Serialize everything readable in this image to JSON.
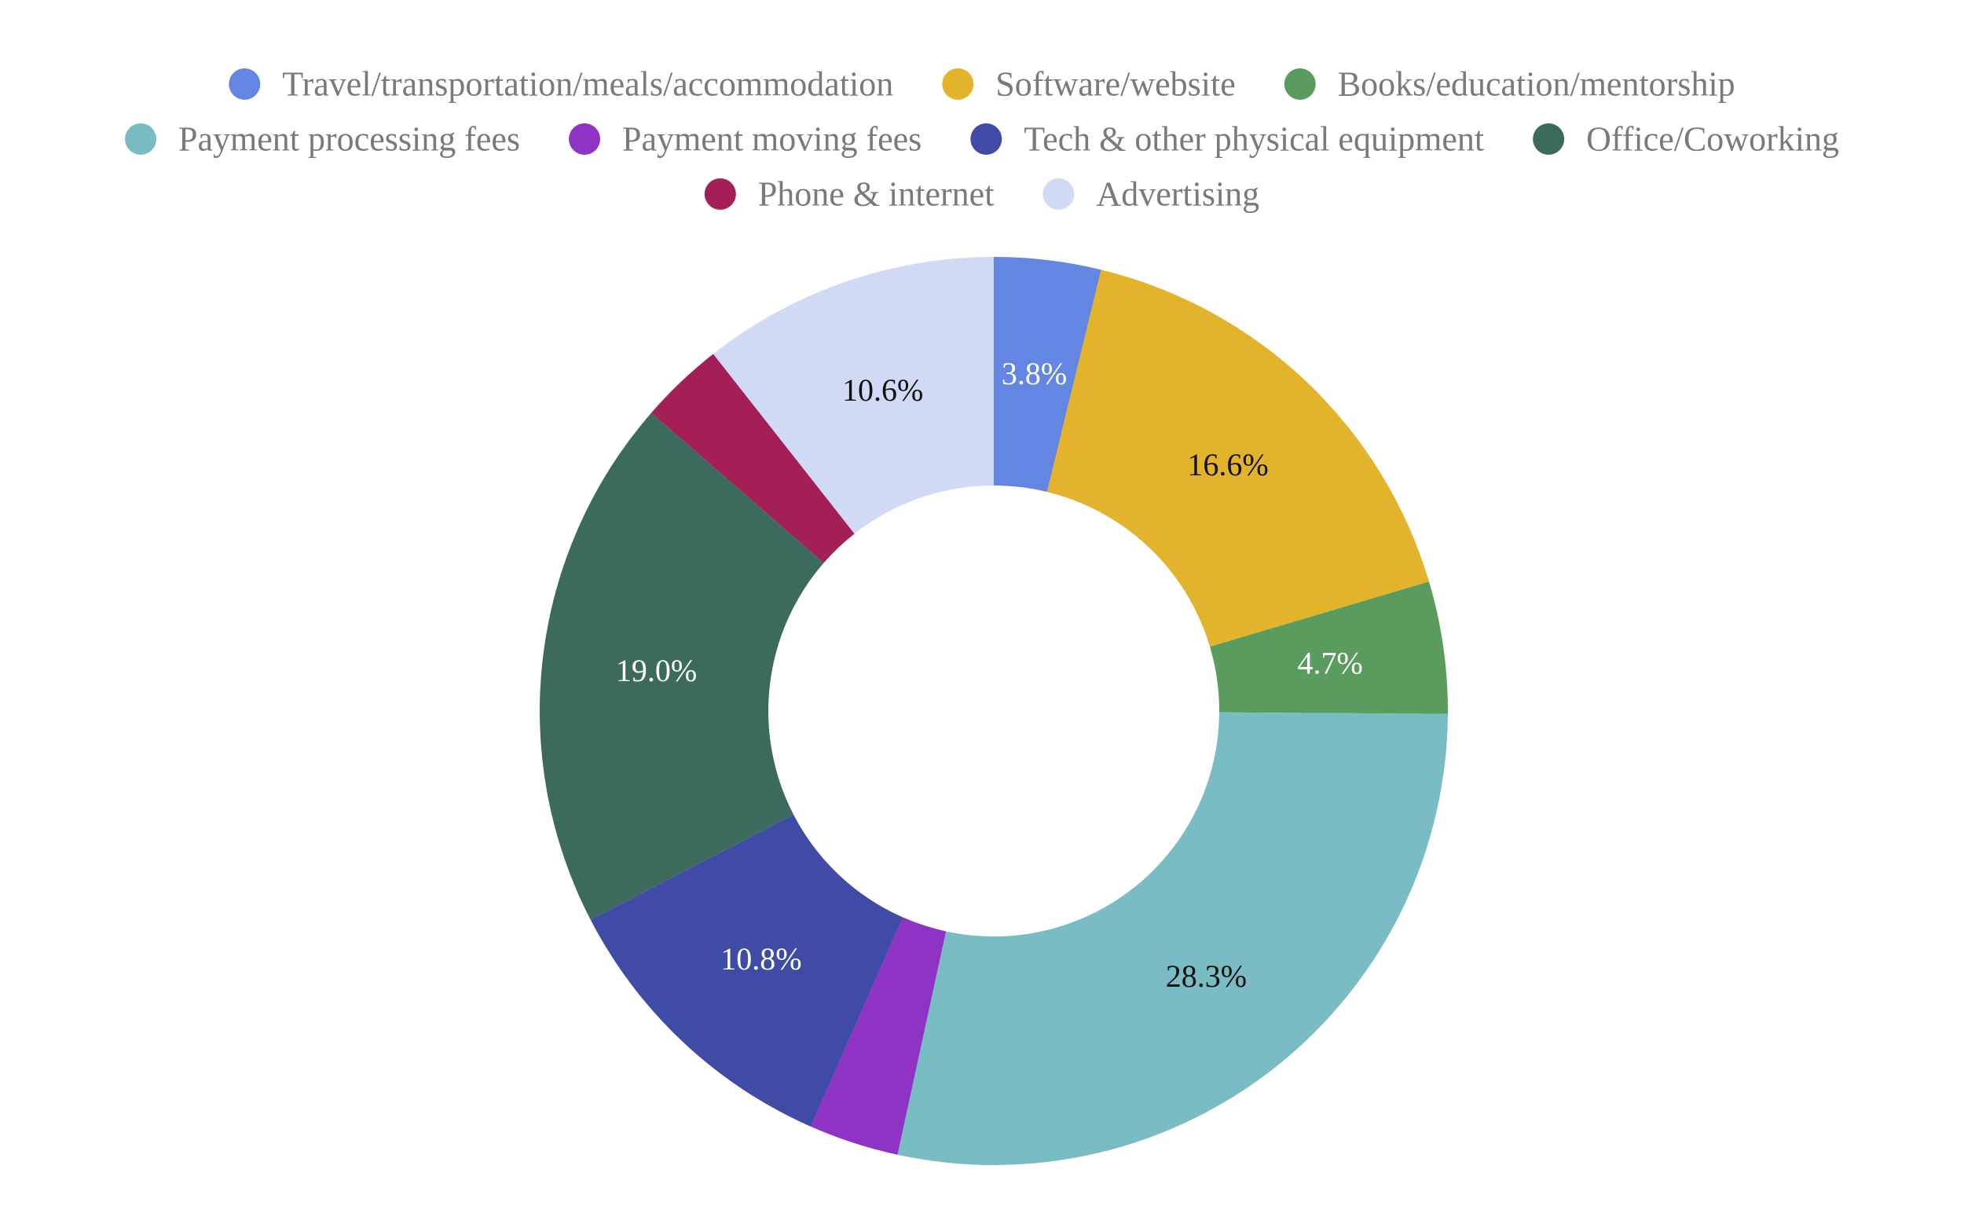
{
  "chart_data": {
    "type": "pie",
    "variant": "donut",
    "legend_position": "top",
    "categories": [
      "Travel/transportation/meals/accommodation",
      "Software/website",
      "Books/education/mentorship",
      "Payment processing fees",
      "Payment moving fees",
      "Tech & other physical equipment",
      "Office/Coworking",
      "Phone & internet",
      "Advertising"
    ],
    "values": [
      3.8,
      16.6,
      4.7,
      28.3,
      3.2,
      10.8,
      19.0,
      3.0,
      10.6
    ],
    "data_labels": [
      "3.8%",
      "16.6%",
      "4.7%",
      "28.3%",
      "",
      "10.8%",
      "19.0%",
      "",
      "10.6%"
    ],
    "colors": [
      "#6486E3",
      "#E2B32B",
      "#5A9C5E",
      "#7ABCC3",
      "#8E33C3",
      "#3F4BA5",
      "#3C6B5E",
      "#A41F56",
      "#D0DAF5"
    ],
    "label_colors": [
      "#ffffff",
      "#111111",
      "#ffffff",
      "#111111",
      "#ffffff",
      "#ffffff",
      "#ffffff",
      "#ffffff",
      "#111111"
    ]
  }
}
